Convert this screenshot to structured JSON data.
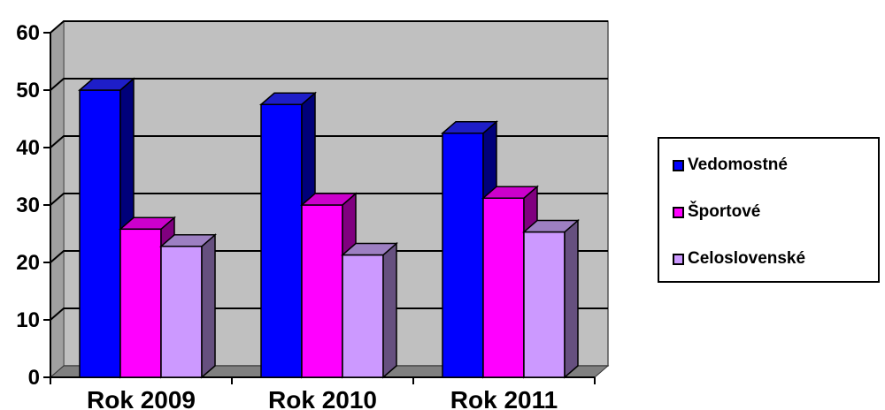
{
  "chart_data": {
    "type": "bar",
    "categories": [
      "Rok 2009",
      "Rok 2010",
      "Rok 2011"
    ],
    "series": [
      {
        "name": "Vedomostné",
        "values": [
          50,
          47.5,
          42.5
        ],
        "color": "#0000ff",
        "side_color": "#00007a",
        "top_color": "#1e1ec8"
      },
      {
        "name": "Športové",
        "values": [
          25.8,
          30,
          31.2
        ],
        "color": "#ff00ff",
        "side_color": "#80007f",
        "top_color": "#cc00cc"
      },
      {
        "name": "Celoslovenské",
        "values": [
          22.8,
          21.3,
          25.3
        ],
        "color": "#cc99ff",
        "side_color": "#66507f",
        "top_color": "#9d7fc2"
      }
    ],
    "yticks": [
      "0",
      "10",
      "20",
      "30",
      "40",
      "50",
      "60"
    ],
    "ylim": [
      0,
      60
    ],
    "grid": true,
    "legend_position": "right",
    "plot_background": "#c0c0c0"
  }
}
